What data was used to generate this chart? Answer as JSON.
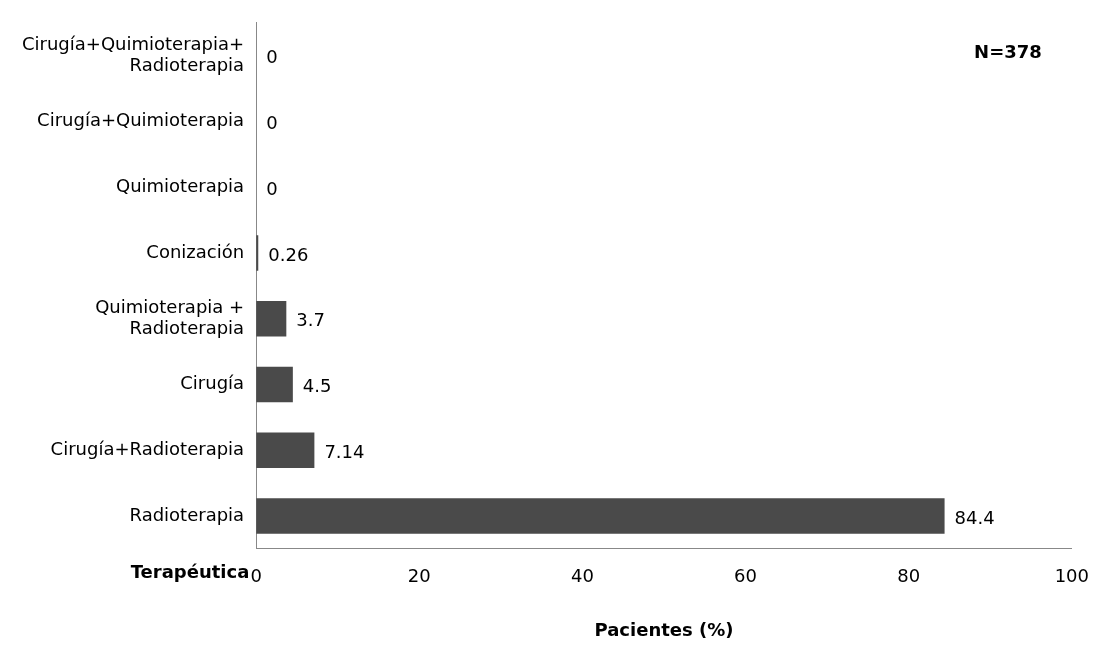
{
  "chart_data": {
    "type": "bar",
    "orientation": "horizontal",
    "xlabel": "Pacientes (%)",
    "ylabel": "Terapéutica",
    "annotations": [
      "N=378"
    ],
    "categories": [
      "Cirugía+Quimioterapia+\nRadioterapia",
      "Cirugía+Quimioterapia",
      "Quimioterapia",
      "Conización",
      "Quimioterapia +\nRadioterapia",
      "Cirugía",
      "Cirugía+Radioterapia",
      "Radioterapia"
    ],
    "values": [
      0,
      0,
      0,
      0.26,
      3.7,
      4.5,
      7.14,
      84.4
    ],
    "color": "#4a4a4a",
    "xlim": [
      0,
      100
    ],
    "xticks": [
      0,
      20,
      40,
      60,
      80,
      100
    ],
    "grid": false,
    "legend": false,
    "data_labels": true
  }
}
